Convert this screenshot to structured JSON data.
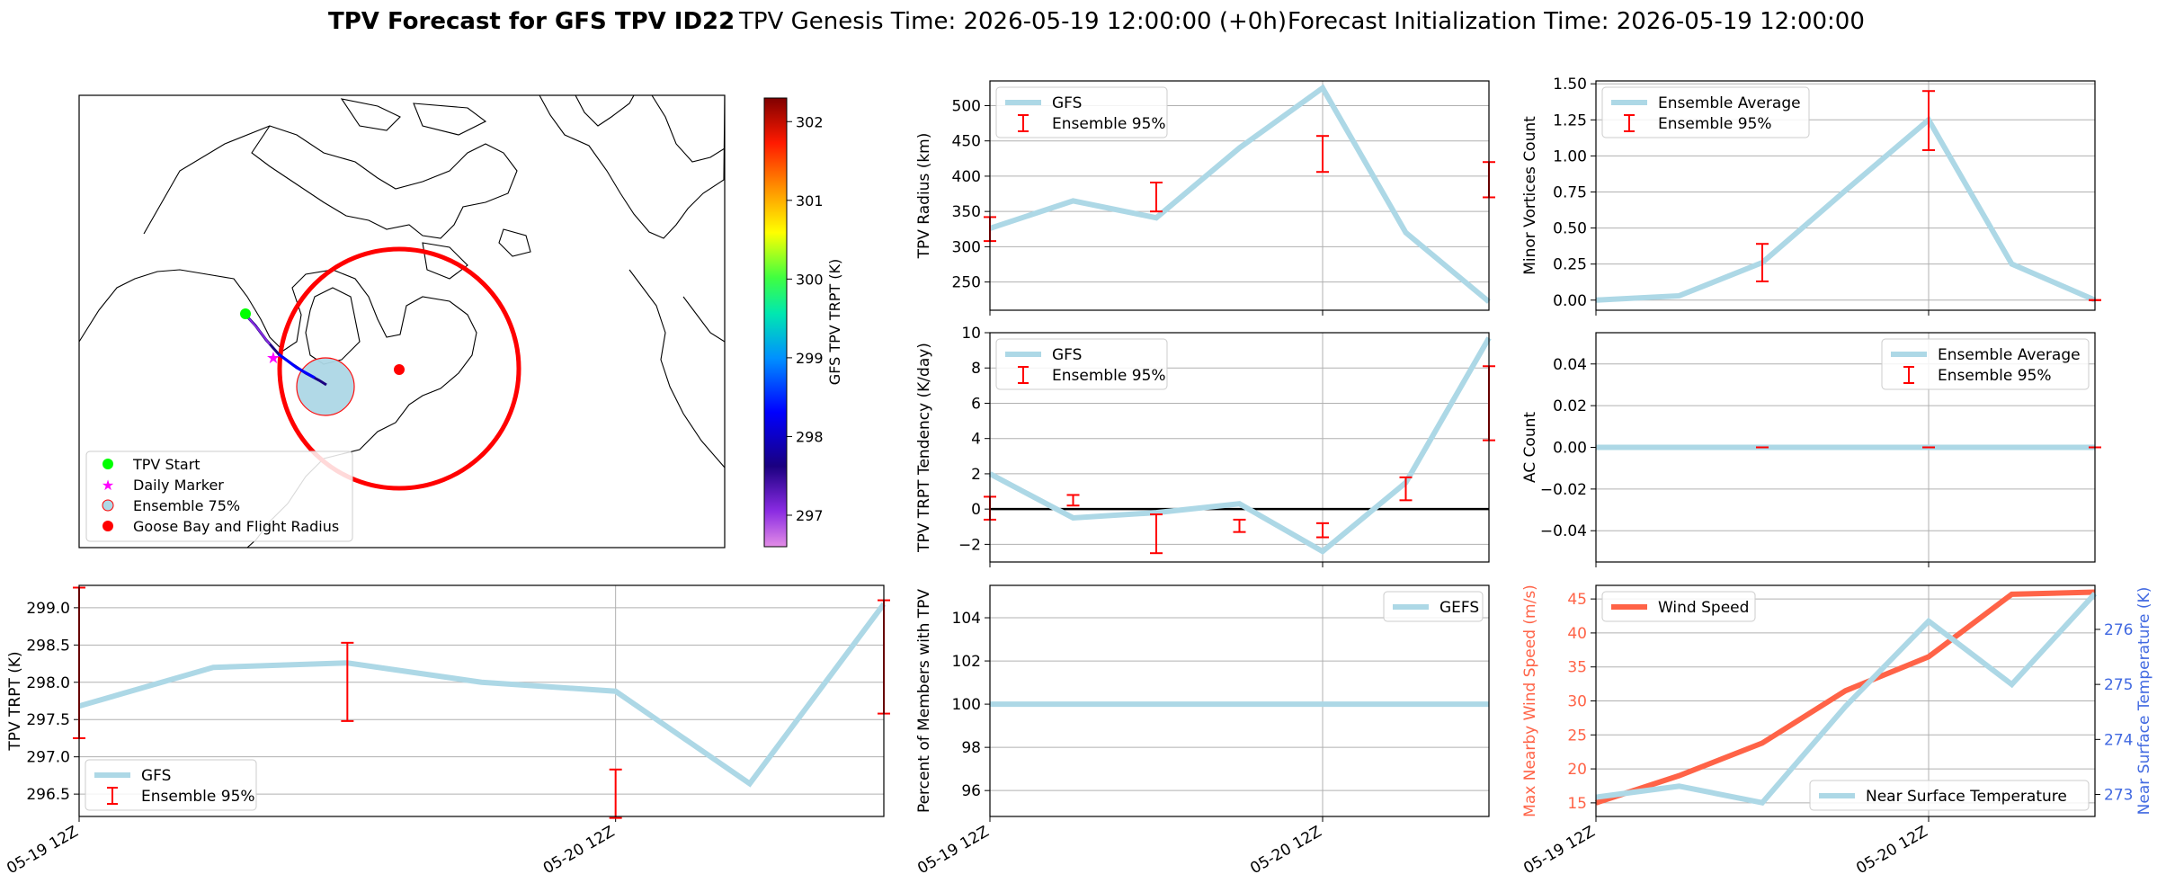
{
  "suptitle": {
    "bold": "TPV Forecast for GFS TPV ID22",
    "genesis": "TPV Genesis Time: 2026-05-19 12:00:00 (+0h)",
    "init": "Forecast Initialization Time: 2026-05-19 12:00:00"
  },
  "colors": {
    "line_blue": "#add8e6",
    "errbar_red": "#ff0000",
    "wind": "#ff6347",
    "temp_axis": "#4169e1",
    "radius_circle": "#ff0000",
    "start_marker": "#00ff00",
    "daily_marker": "#ff00ff",
    "ensemble_fill": "#add8e6",
    "goose_bay": "#ff0000",
    "map_line": "#000000",
    "grid": "#b0b0b0"
  },
  "map": {
    "legend": [
      "TPV Start",
      "Daily Marker",
      "Ensemble 75%",
      "Goose Bay and Flight Radius"
    ],
    "colorbar": {
      "label": "GFS TPV TRPT (K)",
      "ticks": [
        297,
        298,
        299,
        300,
        301,
        302
      ],
      "range": [
        296.6,
        302.3
      ]
    }
  },
  "chart_data": [
    {
      "id": "trpt",
      "type": "line",
      "x": [
        "05-19 12Z",
        "05-19 18Z",
        "05-20 00Z",
        "05-20 06Z",
        "05-20 12Z",
        "05-20 18Z",
        "05-21 00Z"
      ],
      "xticks": [
        "05-19 12Z",
        "05-20 12Z"
      ],
      "xlabel": "",
      "ylabel": "TPV TRPT (K)",
      "ylim": [
        296.2,
        299.3
      ],
      "yticks": [
        "296.5",
        "297.0",
        "297.5",
        "298.0",
        "298.5",
        "299.0"
      ],
      "grid": true,
      "legend_loc": "lower-left",
      "series": [
        {
          "name": "GFS",
          "values": [
            297.68,
            298.2,
            298.26,
            298.0,
            297.88,
            296.64,
            299.05
          ]
        }
      ],
      "errorbars": {
        "name": "Ensemble 95%",
        "low": [
          297.25,
          null,
          297.48,
          null,
          296.18,
          null,
          297.58
        ],
        "high": [
          299.27,
          null,
          298.53,
          null,
          296.83,
          null,
          299.1
        ]
      }
    },
    {
      "id": "radius",
      "type": "line",
      "x": [
        "05-19 12Z",
        "05-19 18Z",
        "05-20 00Z",
        "05-20 06Z",
        "05-20 12Z",
        "05-20 18Z",
        "05-21 00Z"
      ],
      "xticks": [
        "05-19 12Z",
        "05-20 12Z"
      ],
      "ylabel": "TPV Radius (km)",
      "ylim": [
        210,
        535
      ],
      "yticks": [
        "250",
        "300",
        "350",
        "400",
        "450",
        "500"
      ],
      "grid": true,
      "legend_loc": "upper-left",
      "series": [
        {
          "name": "GFS",
          "values": [
            326,
            365,
            341,
            440,
            525,
            320,
            222
          ]
        }
      ],
      "errorbars": {
        "name": "Ensemble 95%",
        "low": [
          308,
          null,
          350,
          null,
          406,
          null,
          370
        ],
        "high": [
          342,
          null,
          391,
          null,
          457,
          null,
          420
        ]
      }
    },
    {
      "id": "tendency",
      "type": "line",
      "x": [
        "05-19 12Z",
        "05-19 18Z",
        "05-20 00Z",
        "05-20 06Z",
        "05-20 12Z",
        "05-20 18Z",
        "05-21 00Z"
      ],
      "xticks": [
        "05-19 12Z",
        "05-20 12Z"
      ],
      "ylabel": "TPV TRPT Tendency (K/day)",
      "ylim": [
        -3,
        10
      ],
      "yticks": [
        "−2",
        "0",
        "2",
        "4",
        "6",
        "8",
        "10"
      ],
      "grid": true,
      "zero_line": true,
      "legend_loc": "upper-left",
      "series": [
        {
          "name": "GFS",
          "values": [
            2.0,
            -0.5,
            -0.2,
            0.3,
            -2.4,
            1.5,
            9.7
          ]
        }
      ],
      "errorbars": {
        "name": "Ensemble 95%",
        "low": [
          -0.6,
          0.2,
          -2.5,
          -1.3,
          -1.6,
          0.5,
          3.9
        ],
        "high": [
          0.7,
          0.8,
          -0.3,
          -0.6,
          -0.8,
          1.8,
          8.1
        ]
      }
    },
    {
      "id": "members",
      "type": "line",
      "x": [
        "05-19 12Z",
        "05-19 18Z",
        "05-20 00Z",
        "05-20 06Z",
        "05-20 12Z",
        "05-20 18Z",
        "05-21 00Z"
      ],
      "xticks": [
        "05-19 12Z",
        "05-20 12Z"
      ],
      "ylabel": "Percent of Members with TPV",
      "ylim": [
        94.8,
        105.5
      ],
      "yticks": [
        "96",
        "98",
        "100",
        "102",
        "104"
      ],
      "grid": true,
      "legend_loc": "upper-right",
      "series": [
        {
          "name": "GEFS",
          "values": [
            100,
            100,
            100,
            100,
            100,
            100,
            100
          ]
        }
      ]
    },
    {
      "id": "minor",
      "type": "line",
      "x": [
        "05-19 12Z",
        "05-19 18Z",
        "05-20 00Z",
        "05-20 06Z",
        "05-20 12Z",
        "05-20 18Z",
        "05-21 00Z"
      ],
      "xticks": [
        "05-19 12Z",
        "05-20 12Z"
      ],
      "ylabel": "Minor Vortices Count",
      "ylim": [
        -0.07,
        1.52
      ],
      "yticks": [
        "0.00",
        "0.25",
        "0.50",
        "0.75",
        "1.00",
        "1.25",
        "1.50"
      ],
      "grid": true,
      "legend_loc": "upper-left",
      "series": [
        {
          "name": "Ensemble Average",
          "values": [
            0.0,
            0.03,
            0.26,
            0.76,
            1.25,
            0.25,
            0.0
          ]
        }
      ],
      "errorbars": {
        "name": "Ensemble 95%",
        "low": [
          null,
          null,
          0.13,
          null,
          1.04,
          null,
          0.0
        ],
        "high": [
          null,
          null,
          0.39,
          null,
          1.45,
          null,
          0.0
        ]
      }
    },
    {
      "id": "ac",
      "type": "line",
      "x": [
        "05-19 12Z",
        "05-19 18Z",
        "05-20 00Z",
        "05-20 06Z",
        "05-20 12Z",
        "05-20 18Z",
        "05-21 00Z"
      ],
      "xticks": [
        "05-19 12Z",
        "05-20 12Z"
      ],
      "ylabel": "AC Count",
      "ylim": [
        -0.055,
        0.055
      ],
      "yticks": [
        "−0.04",
        "−0.02",
        "0.00",
        "0.02",
        "0.04"
      ],
      "grid": true,
      "legend_loc": "upper-right",
      "series": [
        {
          "name": "Ensemble Average",
          "values": [
            0,
            0,
            0,
            0,
            0,
            0,
            0
          ]
        }
      ],
      "errorbars": {
        "name": "Ensemble 95%",
        "low": [
          null,
          null,
          0,
          null,
          0,
          null,
          0
        ],
        "high": [
          null,
          null,
          0,
          null,
          0,
          null,
          0
        ]
      }
    },
    {
      "id": "wind",
      "type": "line",
      "x": [
        "05-19 12Z",
        "05-19 18Z",
        "05-20 00Z",
        "05-20 06Z",
        "05-20 12Z",
        "05-20 18Z",
        "05-21 00Z"
      ],
      "xticks": [
        "05-19 12Z",
        "05-20 12Z"
      ],
      "ylabel": "Max Nearby Wind Speed (m/s)",
      "ylabel_right": "Near Surface Temperature (K)",
      "ylim": [
        13,
        47
      ],
      "yticks": [
        "15",
        "20",
        "25",
        "30",
        "35",
        "40",
        "45"
      ],
      "ylim_right": [
        272.6,
        276.8
      ],
      "yticks_right": [
        "273",
        "274",
        "275",
        "276"
      ],
      "grid": true,
      "series": [
        {
          "name": "Wind Speed",
          "axis": "left",
          "values": [
            15,
            19,
            23.8,
            31.5,
            36.5,
            45.7,
            46
          ]
        },
        {
          "name": "Near Surface Temperature",
          "axis": "right",
          "values": [
            272.95,
            273.15,
            272.85,
            274.6,
            276.15,
            275.0,
            276.65
          ]
        }
      ]
    }
  ]
}
